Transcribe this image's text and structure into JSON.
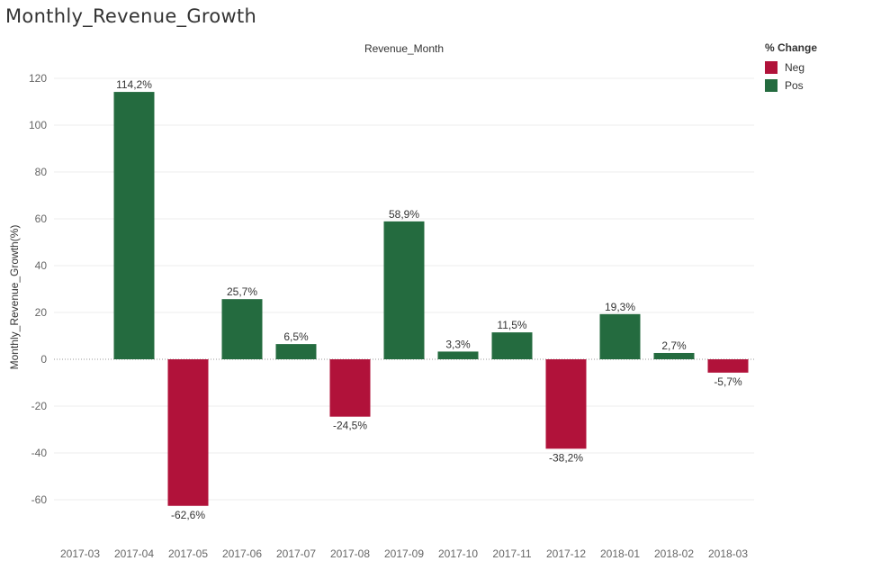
{
  "title": "Monthly_Revenue_Growth",
  "colors": {
    "neg": "#b1123a",
    "pos": "#246b3f",
    "grid": "#ececec",
    "zero": "#9a9a9a"
  },
  "legend": {
    "title": "% Change",
    "items": [
      {
        "label": "Neg",
        "color": "#b1123a"
      },
      {
        "label": "Pos",
        "color": "#246b3f"
      }
    ]
  },
  "chart_data": {
    "type": "bar",
    "title": "Monthly_Revenue_Growth",
    "xlabel": "Revenue_Month",
    "ylabel": "Monthly_Revenue_Growth(%)",
    "categories": [
      "2017-03",
      "2017-04",
      "2017-05",
      "2017-06",
      "2017-07",
      "2017-08",
      "2017-09",
      "2017-10",
      "2017-11",
      "2017-12",
      "2018-01",
      "2018-02",
      "2018-03"
    ],
    "values": [
      null,
      114.2,
      -62.6,
      25.7,
      6.5,
      -24.5,
      58.9,
      3.3,
      11.5,
      -38.2,
      19.3,
      2.7,
      -5.7
    ],
    "data_labels": [
      "",
      "114,2%",
      "-62,6%",
      "25,7%",
      "6,5%",
      "-24,5%",
      "58,9%",
      "3,3%",
      "11,5%",
      "-38,2%",
      "19,3%",
      "2,7%",
      "-5,7%"
    ],
    "series_colors": [
      "",
      "Pos",
      "Neg",
      "Pos",
      "Pos",
      "Neg",
      "Pos",
      "Pos",
      "Pos",
      "Neg",
      "Pos",
      "Pos",
      "Neg"
    ],
    "ylim": [
      -70,
      125
    ],
    "yticks": [
      120,
      100,
      80,
      60,
      40,
      20,
      0,
      -20,
      -40,
      -60
    ],
    "grid": true,
    "legend_position": "top-right"
  }
}
